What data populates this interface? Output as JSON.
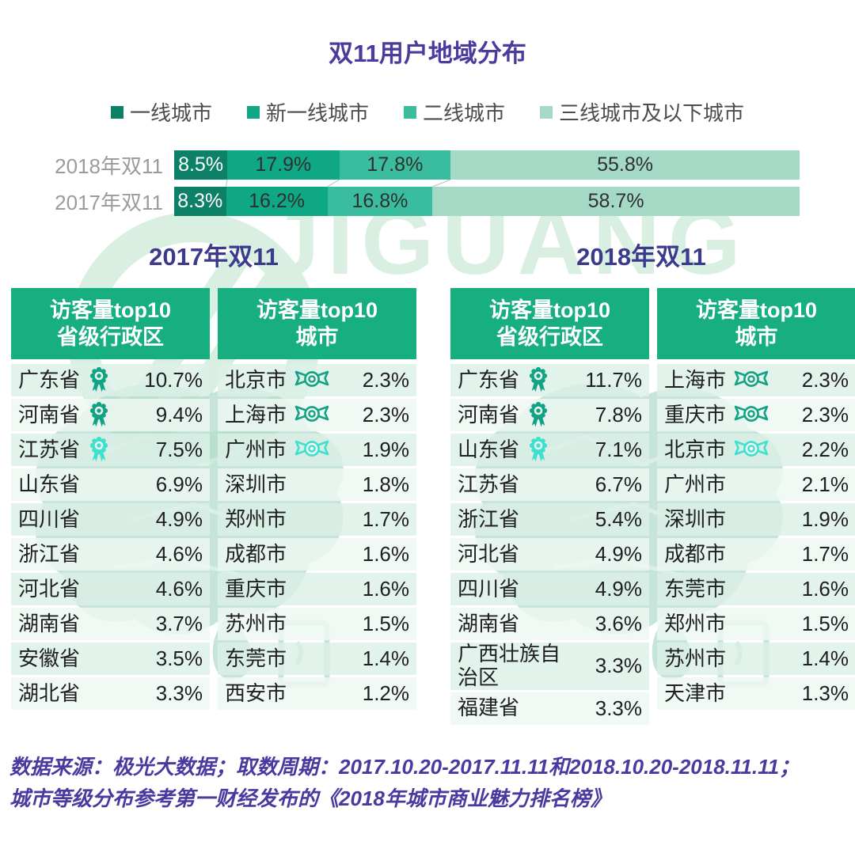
{
  "title": "双11用户地域分布",
  "watermark": {
    "brand": "JIGUANG"
  },
  "legend": [
    {
      "label": "一线城市",
      "color": "#0d8168"
    },
    {
      "label": "新一线城市",
      "color": "#0fa884"
    },
    {
      "label": "二线城市",
      "color": "#39bd9e"
    },
    {
      "label": "三线城市及以下城市",
      "color": "#a4d9c6"
    }
  ],
  "chart_data": {
    "type": "bar",
    "stacked": true,
    "orientation": "horizontal",
    "unit": "%",
    "series_labels": [
      "一线城市",
      "新一线城市",
      "二线城市",
      "三线城市及以下城市"
    ],
    "rows": [
      {
        "label": "2018年双11",
        "values": [
          8.5,
          17.9,
          17.8,
          55.8
        ]
      },
      {
        "label": "2017年双11",
        "values": [
          8.3,
          16.2,
          16.8,
          58.7
        ]
      }
    ],
    "xlim": [
      0,
      100
    ],
    "legend_position": "top"
  },
  "sections": [
    {
      "title": "2017年双11"
    },
    {
      "title": "2018年双11"
    }
  ],
  "tables": [
    {
      "header": [
        "访客量top10",
        "省级行政区"
      ],
      "rows": [
        {
          "name": "广东省",
          "medal": "rosette-1",
          "value": "10.7%"
        },
        {
          "name": "河南省",
          "medal": "rosette-2",
          "value": "9.4%"
        },
        {
          "name": "江苏省",
          "medal": "rosette-3",
          "value": "7.5%"
        },
        {
          "name": "山东省",
          "value": "6.9%"
        },
        {
          "name": "四川省",
          "value": "4.9%"
        },
        {
          "name": "浙江省",
          "value": "4.6%"
        },
        {
          "name": "河北省",
          "value": "4.6%"
        },
        {
          "name": "湖南省",
          "value": "3.7%"
        },
        {
          "name": "安徽省",
          "value": "3.5%"
        },
        {
          "name": "湖北省",
          "value": "3.3%"
        }
      ]
    },
    {
      "header": [
        "访客量top10",
        "城市"
      ],
      "rows": [
        {
          "name": "北京市",
          "medal": "wings-1",
          "value": "2.3%"
        },
        {
          "name": "上海市",
          "medal": "wings-2",
          "value": "2.3%"
        },
        {
          "name": "广州市",
          "medal": "wings-3",
          "value": "1.9%"
        },
        {
          "name": "深圳市",
          "value": "1.8%"
        },
        {
          "name": "郑州市",
          "value": "1.7%"
        },
        {
          "name": "成都市",
          "value": "1.6%"
        },
        {
          "name": "重庆市",
          "value": "1.6%"
        },
        {
          "name": "苏州市",
          "value": "1.5%"
        },
        {
          "name": "东莞市",
          "value": "1.4%"
        },
        {
          "name": "西安市",
          "value": "1.2%"
        }
      ]
    },
    {
      "header": [
        "访客量top10",
        "省级行政区"
      ],
      "rows": [
        {
          "name": "广东省",
          "medal": "rosette-1",
          "value": "11.7%"
        },
        {
          "name": "河南省",
          "medal": "rosette-2",
          "value": "7.8%"
        },
        {
          "name": "山东省",
          "medal": "rosette-3",
          "value": "7.1%"
        },
        {
          "name": "江苏省",
          "value": "6.7%"
        },
        {
          "name": "浙江省",
          "value": "5.4%"
        },
        {
          "name": "河北省",
          "value": "4.9%"
        },
        {
          "name": "四川省",
          "value": "4.9%"
        },
        {
          "name": "湖南省",
          "value": "3.6%"
        },
        {
          "name": "广西壮族自治区",
          "value": "3.3%"
        },
        {
          "name": "福建省",
          "value": "3.3%"
        }
      ]
    },
    {
      "header": [
        "访客量top10",
        "城市"
      ],
      "rows": [
        {
          "name": "上海市",
          "medal": "wings-1",
          "value": "2.3%"
        },
        {
          "name": "重庆市",
          "medal": "wings-2",
          "value": "2.3%"
        },
        {
          "name": "北京市",
          "medal": "wings-3",
          "value": "2.2%"
        },
        {
          "name": "广州市",
          "value": "2.1%"
        },
        {
          "name": "深圳市",
          "value": "1.9%"
        },
        {
          "name": "成都市",
          "value": "1.7%"
        },
        {
          "name": "东莞市",
          "value": "1.6%"
        },
        {
          "name": "郑州市",
          "value": "1.5%"
        },
        {
          "name": "苏州市",
          "value": "1.4%"
        },
        {
          "name": "天津市",
          "value": "1.3%"
        }
      ]
    }
  ],
  "footer": {
    "line1": "数据来源：极光大数据；取数周期：2017.10.20-2017.11.11和2018.10.20-2018.11.11；",
    "line2": "城市等级分布参考第一财经发布的《2018年城市商业魅力排名榜》"
  },
  "colors": {
    "title_purple": "#4a3c9f",
    "section_navy": "#3b3a8c",
    "header_green": "#17ae80",
    "medal_teal": "#12a385",
    "medal_cyan": "#3ee0cf",
    "connector_gray": "#b9bdbd",
    "bar_label_gray": "#9b9b9b"
  }
}
